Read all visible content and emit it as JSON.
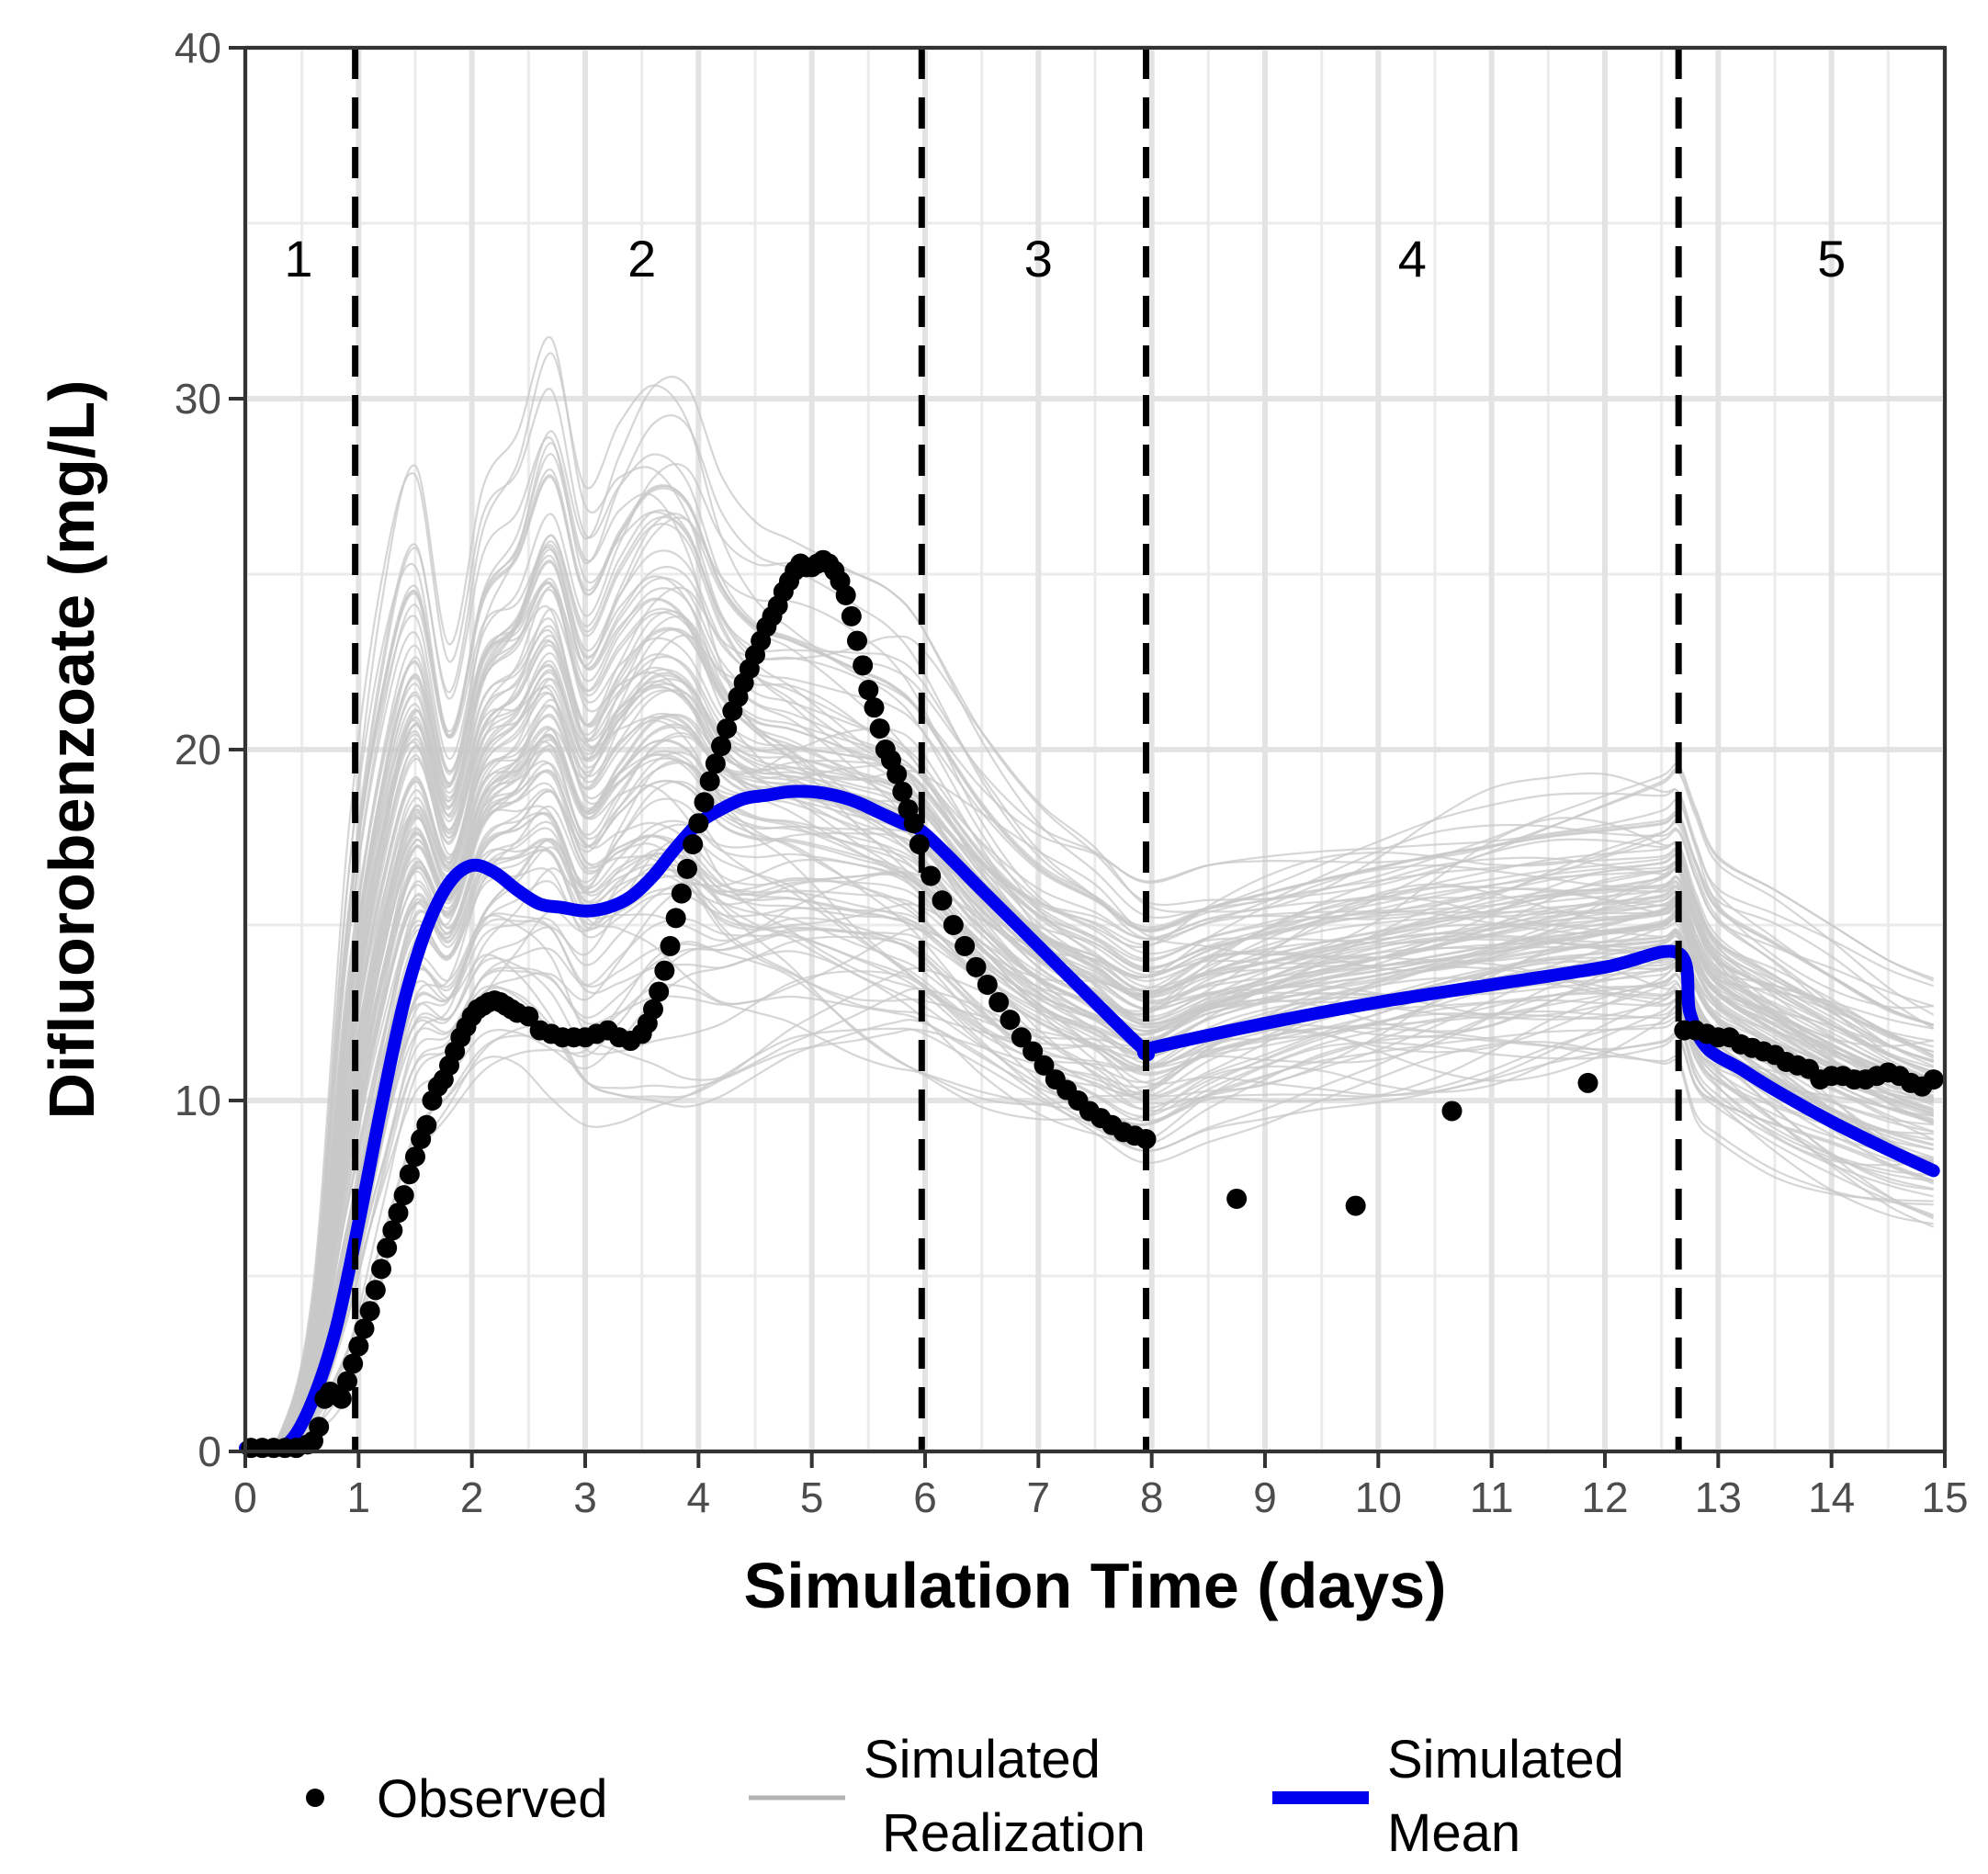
{
  "chart_data": {
    "type": "line",
    "xlabel": "Simulation Time (days)",
    "ylabel": "Difluorobenzoate (mg/L)",
    "xlim": [
      0,
      15
    ],
    "ylim": [
      0,
      40
    ],
    "xticks": [
      0,
      1,
      2,
      3,
      4,
      5,
      6,
      7,
      8,
      9,
      10,
      11,
      12,
      13,
      14,
      15
    ],
    "yticks": [
      0,
      10,
      20,
      30,
      40
    ],
    "x_minor_gridlines": [
      0.5,
      1.5,
      2.5,
      3.5,
      4.5,
      5.5,
      6.5,
      7.5,
      8.5,
      9.5,
      10.5,
      11.5,
      12.5,
      13.5,
      14.5
    ],
    "y_minor_gridlines": [
      5,
      15,
      25,
      35
    ],
    "grid": true,
    "phase_boundaries": [
      0.97,
      5.97,
      7.95,
      12.65
    ],
    "phase_labels": [
      {
        "text": "1",
        "x": 0.47,
        "y": 34
      },
      {
        "text": "2",
        "x": 3.5,
        "y": 34
      },
      {
        "text": "3",
        "x": 7.0,
        "y": 34
      },
      {
        "text": "4",
        "x": 10.3,
        "y": 34
      },
      {
        "text": "5",
        "x": 14.0,
        "y": 34
      }
    ],
    "legend": {
      "placement": "bottom",
      "items": [
        {
          "label": "Observed",
          "kind": "point",
          "color": "#000000"
        },
        {
          "label_lines": [
            "Simulated",
            "Realization"
          ],
          "kind": "line",
          "color": "#b3b3b3"
        },
        {
          "label_lines": [
            "Simulated",
            "Mean"
          ],
          "kind": "line",
          "color": "#0000ee"
        }
      ]
    },
    "series": [
      {
        "name": "Observed",
        "kind": "points",
        "color": "#000000",
        "x": [
          0.05,
          0.15,
          0.25,
          0.35,
          0.45,
          0.55,
          0.6,
          0.65,
          0.7,
          0.75,
          0.8,
          0.85,
          0.9,
          0.95,
          1.0,
          1.05,
          1.1,
          1.15,
          1.2,
          1.25,
          1.3,
          1.35,
          1.4,
          1.45,
          1.5,
          1.55,
          1.6,
          1.65,
          1.7,
          1.75,
          1.8,
          1.85,
          1.9,
          1.95,
          2.0,
          2.05,
          2.1,
          2.15,
          2.2,
          2.25,
          2.3,
          2.35,
          2.4,
          2.5,
          2.6,
          2.7,
          2.8,
          2.9,
          3.0,
          3.1,
          3.2,
          3.3,
          3.4,
          3.5,
          3.55,
          3.6,
          3.65,
          3.7,
          3.75,
          3.8,
          3.85,
          3.9,
          3.95,
          4.0,
          4.05,
          4.1,
          4.15,
          4.2,
          4.25,
          4.3,
          4.35,
          4.4,
          4.45,
          4.5,
          4.55,
          4.6,
          4.65,
          4.7,
          4.75,
          4.8,
          4.85,
          4.9,
          4.95,
          5.0,
          5.05,
          5.1,
          5.15,
          5.2,
          5.25,
          5.3,
          5.35,
          5.4,
          5.45,
          5.5,
          5.55,
          5.6,
          5.65,
          5.7,
          5.75,
          5.8,
          5.85,
          5.9,
          5.95,
          6.05,
          6.15,
          6.25,
          6.35,
          6.45,
          6.55,
          6.65,
          6.75,
          6.85,
          6.95,
          7.05,
          7.15,
          7.25,
          7.35,
          7.45,
          7.55,
          7.65,
          7.75,
          7.85,
          7.95,
          8.75,
          9.8,
          10.65,
          11.85,
          12.7,
          12.8,
          12.9,
          13.0,
          13.1,
          13.2,
          13.3,
          13.4,
          13.5,
          13.6,
          13.7,
          13.8,
          13.9,
          14.0,
          14.1,
          14.2,
          14.3,
          14.4,
          14.5,
          14.6,
          14.7,
          14.8,
          14.9
        ],
        "y": [
          0.1,
          0.1,
          0.1,
          0.1,
          0.1,
          0.2,
          0.3,
          0.7,
          1.5,
          1.7,
          1.6,
          1.5,
          2.0,
          2.5,
          3.0,
          3.5,
          4.0,
          4.6,
          5.2,
          5.8,
          6.3,
          6.8,
          7.3,
          7.9,
          8.4,
          8.9,
          9.3,
          10.0,
          10.4,
          10.6,
          11.0,
          11.4,
          11.8,
          12.1,
          12.4,
          12.6,
          12.7,
          12.8,
          12.85,
          12.8,
          12.7,
          12.6,
          12.5,
          12.4,
          12.0,
          11.9,
          11.8,
          11.8,
          11.8,
          11.9,
          12.0,
          11.8,
          11.7,
          11.9,
          12.2,
          12.6,
          13.1,
          13.7,
          14.4,
          15.2,
          15.9,
          16.6,
          17.3,
          17.9,
          18.5,
          19.1,
          19.6,
          20.1,
          20.6,
          21.1,
          21.5,
          21.9,
          22.3,
          22.7,
          23.1,
          23.5,
          23.8,
          24.1,
          24.5,
          24.8,
          25.1,
          25.3,
          25.2,
          25.2,
          25.3,
          25.4,
          25.3,
          25.1,
          24.8,
          24.4,
          23.8,
          23.1,
          22.4,
          21.7,
          21.2,
          20.6,
          20.0,
          19.7,
          19.3,
          18.8,
          18.3,
          17.9,
          17.3,
          16.4,
          15.7,
          15.0,
          14.4,
          13.8,
          13.3,
          12.8,
          12.3,
          11.8,
          11.4,
          11.0,
          10.6,
          10.3,
          10.0,
          9.7,
          9.5,
          9.3,
          9.1,
          9.0,
          8.9,
          7.2,
          7.0,
          9.7,
          10.5,
          12.0,
          12.0,
          11.9,
          11.8,
          11.8,
          11.6,
          11.5,
          11.4,
          11.3,
          11.1,
          11.0,
          10.9,
          10.6,
          10.7,
          10.7,
          10.6,
          10.6,
          10.7,
          10.8,
          10.7,
          10.5,
          10.4,
          10.6
        ]
      },
      {
        "name": "Simulated Mean",
        "kind": "line",
        "color": "#0000ee",
        "x": [
          0,
          0.2,
          0.4,
          0.6,
          0.8,
          1.0,
          1.2,
          1.4,
          1.6,
          1.8,
          2.0,
          2.2,
          2.4,
          2.6,
          2.8,
          3.0,
          3.2,
          3.4,
          3.6,
          3.8,
          4.0,
          4.2,
          4.4,
          4.6,
          4.8,
          5.0,
          5.2,
          5.4,
          5.6,
          5.8,
          6.0,
          6.5,
          7.0,
          7.5,
          7.95,
          8.0,
          9.0,
          10.0,
          11.0,
          12.0,
          12.65,
          12.75,
          12.9,
          13.2,
          13.5,
          14.0,
          14.5,
          14.9
        ],
        "y": [
          0.1,
          0.1,
          0.3,
          1.5,
          3.5,
          6.5,
          9.8,
          12.8,
          14.9,
          16.2,
          16.7,
          16.5,
          16.0,
          15.6,
          15.5,
          15.4,
          15.5,
          15.8,
          16.4,
          17.2,
          17.9,
          18.3,
          18.6,
          18.7,
          18.8,
          18.8,
          18.7,
          18.5,
          18.2,
          17.9,
          17.6,
          16.0,
          14.4,
          12.8,
          11.4,
          11.5,
          12.2,
          12.8,
          13.3,
          13.8,
          14.2,
          12.5,
          11.5,
          10.9,
          10.3,
          9.4,
          8.6,
          8.0
        ]
      }
    ],
    "realizations": {
      "name": "Simulated Realization",
      "kind": "line-ensemble",
      "color": "#c8c8c8",
      "count": 110,
      "x_knots": [
        0,
        0.3,
        0.6,
        0.9,
        1.2,
        1.5,
        1.8,
        2.1,
        2.4,
        2.7,
        3.0,
        3.3,
        3.6,
        3.9,
        4.2,
        4.5,
        4.8,
        5.1,
        5.4,
        5.7,
        5.97,
        6.5,
        7.0,
        7.5,
        7.95,
        8.5,
        9.0,
        9.5,
        10.0,
        10.5,
        11.0,
        11.5,
        12.0,
        12.5,
        12.65,
        12.8,
        13.0,
        13.5,
        14.0,
        14.5,
        14.9
      ],
      "envelope_low": [
        0,
        0,
        0.1,
        0.6,
        3.5,
        7.0,
        9.0,
        10.0,
        10.0,
        9.0,
        8.5,
        8.5,
        8.8,
        9.0,
        9.5,
        10.0,
        10.3,
        10.3,
        10.2,
        10.1,
        10.0,
        9.3,
        8.6,
        8.0,
        7.6,
        8.5,
        9.0,
        9.4,
        9.6,
        9.8,
        10.0,
        10.2,
        10.3,
        10.4,
        10.5,
        9.0,
        8.5,
        7.5,
        6.8,
        6.3,
        6.0
      ],
      "envelope_high": [
        0,
        0.5,
        5.0,
        18.0,
        25.5,
        28.5,
        23.0,
        27.5,
        29.0,
        32.0,
        28.0,
        30.0,
        31.5,
        31.0,
        28.0,
        26.5,
        26.0,
        25.5,
        25.0,
        24.5,
        23.5,
        20.5,
        18.5,
        17.5,
        16.5,
        17.0,
        17.4,
        17.8,
        18.2,
        18.6,
        18.9,
        19.2,
        19.4,
        19.6,
        19.8,
        18.5,
        17.0,
        16.0,
        15.0,
        14.0,
        13.5
      ]
    }
  }
}
